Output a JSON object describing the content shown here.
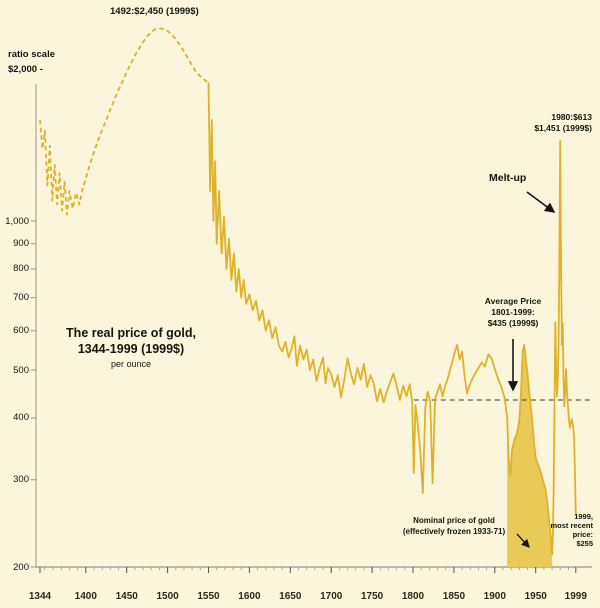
{
  "chart_data": {
    "type": "line",
    "title": "The real price of gold,",
    "title_line2": "1344-1999 (1999$)",
    "subtitle": "per ounce",
    "y_axis": {
      "scale": "log",
      "scale_note": "ratio scale",
      "top_label": "$2,000 -",
      "ticks": [
        1000,
        900,
        800,
        700,
        600,
        500,
        400,
        300,
        200
      ],
      "labels": [
        "1,000",
        "900",
        "800",
        "700",
        "600",
        "500",
        "400",
        "300",
        "200"
      ],
      "min": 200,
      "max": 2600
    },
    "x_axis": {
      "ticks": [
        1344,
        1400,
        1450,
        1500,
        1550,
        1600,
        1650,
        1700,
        1750,
        1800,
        1850,
        1900,
        1950,
        1999
      ]
    },
    "series": [
      {
        "name": "real-price-1344-1550",
        "style": "dashed",
        "points": [
          [
            1344,
            1600
          ],
          [
            1347,
            1400
          ],
          [
            1350,
            1520
          ],
          [
            1353,
            1180
          ],
          [
            1356,
            1420
          ],
          [
            1359,
            1100
          ],
          [
            1362,
            1300
          ],
          [
            1365,
            1080
          ],
          [
            1368,
            1250
          ],
          [
            1371,
            1050
          ],
          [
            1374,
            1200
          ],
          [
            1377,
            1030
          ],
          [
            1380,
            1150
          ],
          [
            1384,
            1060
          ],
          [
            1388,
            1140
          ],
          [
            1392,
            1080
          ],
          [
            1396,
            1160
          ],
          [
            1400,
            1220
          ],
          [
            1405,
            1300
          ],
          [
            1410,
            1380
          ],
          [
            1415,
            1455
          ],
          [
            1420,
            1530
          ],
          [
            1425,
            1600
          ],
          [
            1430,
            1680
          ],
          [
            1435,
            1760
          ],
          [
            1440,
            1840
          ],
          [
            1445,
            1915
          ],
          [
            1450,
            2000
          ],
          [
            1455,
            2080
          ],
          [
            1460,
            2160
          ],
          [
            1465,
            2230
          ],
          [
            1470,
            2300
          ],
          [
            1475,
            2360
          ],
          [
            1480,
            2410
          ],
          [
            1485,
            2440
          ],
          [
            1492,
            2450
          ],
          [
            1496,
            2440
          ],
          [
            1500,
            2420
          ],
          [
            1505,
            2380
          ],
          [
            1510,
            2330
          ],
          [
            1515,
            2270
          ],
          [
            1520,
            2200
          ],
          [
            1525,
            2130
          ],
          [
            1530,
            2060
          ],
          [
            1535,
            2000
          ],
          [
            1540,
            1960
          ],
          [
            1545,
            1930
          ],
          [
            1550,
            1900
          ]
        ]
      },
      {
        "name": "real-price-1550-1999",
        "style": "solid",
        "points": [
          [
            1550,
            1900
          ],
          [
            1552,
            1150
          ],
          [
            1554,
            1600
          ],
          [
            1556,
            1000
          ],
          [
            1558,
            1320
          ],
          [
            1560,
            900
          ],
          [
            1563,
            1150
          ],
          [
            1566,
            860
          ],
          [
            1569,
            1020
          ],
          [
            1572,
            800
          ],
          [
            1575,
            920
          ],
          [
            1578,
            760
          ],
          [
            1581,
            860
          ],
          [
            1584,
            720
          ],
          [
            1587,
            800
          ],
          [
            1590,
            700
          ],
          [
            1593,
            760
          ],
          [
            1596,
            680
          ],
          [
            1600,
            710
          ],
          [
            1604,
            660
          ],
          [
            1608,
            690
          ],
          [
            1612,
            630
          ],
          [
            1616,
            660
          ],
          [
            1620,
            600
          ],
          [
            1624,
            630
          ],
          [
            1628,
            580
          ],
          [
            1632,
            610
          ],
          [
            1636,
            560
          ],
          [
            1640,
            545
          ],
          [
            1644,
            570
          ],
          [
            1648,
            530
          ],
          [
            1652,
            555
          ],
          [
            1655,
            585
          ],
          [
            1658,
            510
          ],
          [
            1662,
            560
          ],
          [
            1666,
            525
          ],
          [
            1670,
            550
          ],
          [
            1674,
            500
          ],
          [
            1678,
            525
          ],
          [
            1682,
            475
          ],
          [
            1686,
            505
          ],
          [
            1690,
            530
          ],
          [
            1693,
            470
          ],
          [
            1696,
            505
          ],
          [
            1700,
            490
          ],
          [
            1704,
            462
          ],
          [
            1708,
            488
          ],
          [
            1712,
            440
          ],
          [
            1716,
            478
          ],
          [
            1720,
            528
          ],
          [
            1724,
            492
          ],
          [
            1728,
            468
          ],
          [
            1732,
            505
          ],
          [
            1736,
            478
          ],
          [
            1740,
            515
          ],
          [
            1744,
            462
          ],
          [
            1748,
            488
          ],
          [
            1752,
            470
          ],
          [
            1756,
            432
          ],
          [
            1760,
            458
          ],
          [
            1764,
            430
          ],
          [
            1768,
            452
          ],
          [
            1772,
            472
          ],
          [
            1776,
            492
          ],
          [
            1780,
            465
          ],
          [
            1784,
            435
          ],
          [
            1788,
            465
          ],
          [
            1792,
            442
          ],
          [
            1796,
            468
          ],
          [
            1799,
            430
          ],
          [
            1801,
            310
          ],
          [
            1803,
            425
          ],
          [
            1806,
            385
          ],
          [
            1809,
            340
          ],
          [
            1812,
            282
          ],
          [
            1815,
            420
          ],
          [
            1818,
            452
          ],
          [
            1821,
            432
          ],
          [
            1824,
            295
          ],
          [
            1827,
            438
          ],
          [
            1830,
            452
          ],
          [
            1833,
            468
          ],
          [
            1836,
            442
          ],
          [
            1839,
            462
          ],
          [
            1842,
            478
          ],
          [
            1845,
            498
          ],
          [
            1848,
            520
          ],
          [
            1851,
            542
          ],
          [
            1854,
            562
          ],
          [
            1857,
            525
          ],
          [
            1860,
            545
          ],
          [
            1863,
            488
          ],
          [
            1866,
            448
          ],
          [
            1869,
            465
          ],
          [
            1872,
            478
          ],
          [
            1876,
            492
          ],
          [
            1880,
            505
          ],
          [
            1884,
            518
          ],
          [
            1888,
            508
          ],
          [
            1892,
            538
          ],
          [
            1896,
            528
          ],
          [
            1900,
            502
          ],
          [
            1904,
            480
          ],
          [
            1908,
            462
          ],
          [
            1912,
            440
          ],
          [
            1915,
            402
          ],
          [
            1917,
            330
          ],
          [
            1919,
            305
          ],
          [
            1921,
            345
          ],
          [
            1924,
            362
          ],
          [
            1927,
            372
          ],
          [
            1930,
            395
          ],
          [
            1932,
            448
          ],
          [
            1934,
            545
          ],
          [
            1936,
            562
          ],
          [
            1938,
            522
          ],
          [
            1940,
            492
          ],
          [
            1942,
            452
          ],
          [
            1944,
            422
          ],
          [
            1946,
            392
          ],
          [
            1948,
            355
          ],
          [
            1950,
            332
          ],
          [
            1953,
            322
          ],
          [
            1956,
            312
          ],
          [
            1959,
            298
          ],
          [
            1962,
            288
          ],
          [
            1965,
            262
          ],
          [
            1968,
            235
          ],
          [
            1970,
            212
          ],
          [
            1971,
            232
          ],
          [
            1972,
            292
          ],
          [
            1973,
            420
          ],
          [
            1974,
            625
          ],
          [
            1975,
            505
          ],
          [
            1976,
            442
          ],
          [
            1977,
            482
          ],
          [
            1978,
            565
          ],
          [
            1979,
            855
          ],
          [
            1980,
            1451
          ],
          [
            1981,
            798
          ],
          [
            1982,
            562
          ],
          [
            1983,
            622
          ],
          [
            1984,
            482
          ],
          [
            1985,
            422
          ],
          [
            1986,
            452
          ],
          [
            1987,
            502
          ],
          [
            1988,
            462
          ],
          [
            1989,
            432
          ],
          [
            1990,
            412
          ],
          [
            1991,
            392
          ],
          [
            1992,
            382
          ],
          [
            1993,
            392
          ],
          [
            1994,
            398
          ],
          [
            1995,
            392
          ],
          [
            1996,
            382
          ],
          [
            1997,
            362
          ],
          [
            1998,
            305
          ],
          [
            1999,
            255
          ]
        ]
      }
    ],
    "nominal_fill": {
      "from": 1915,
      "to": 1970
    },
    "average_line": {
      "value": 435,
      "from": 1801,
      "to": 1999
    },
    "annotations": {
      "peak_1492": "1492:$2,450 (1999$)",
      "peak_1980_line1": "1980:$613",
      "peak_1980_line2": "$1,451 (1999$)",
      "meltup": "Melt-up",
      "average_line1": "Average Price",
      "average_line2": "1801-1999:",
      "average_line3": "$435 (1999$)",
      "nominal_line1": "Nominal price of gold",
      "nominal_line2": "(effectively frozen 1933-71)",
      "recent_lines": [
        "1999,",
        "most recent",
        "price:",
        "$255"
      ]
    },
    "colors": {
      "gold": "#DFB22B",
      "fill": "#EACA57",
      "text": "#16140e",
      "axis": "#9a9786",
      "average_dash": "#3c3c38",
      "background": "#FBF5DC"
    }
  }
}
